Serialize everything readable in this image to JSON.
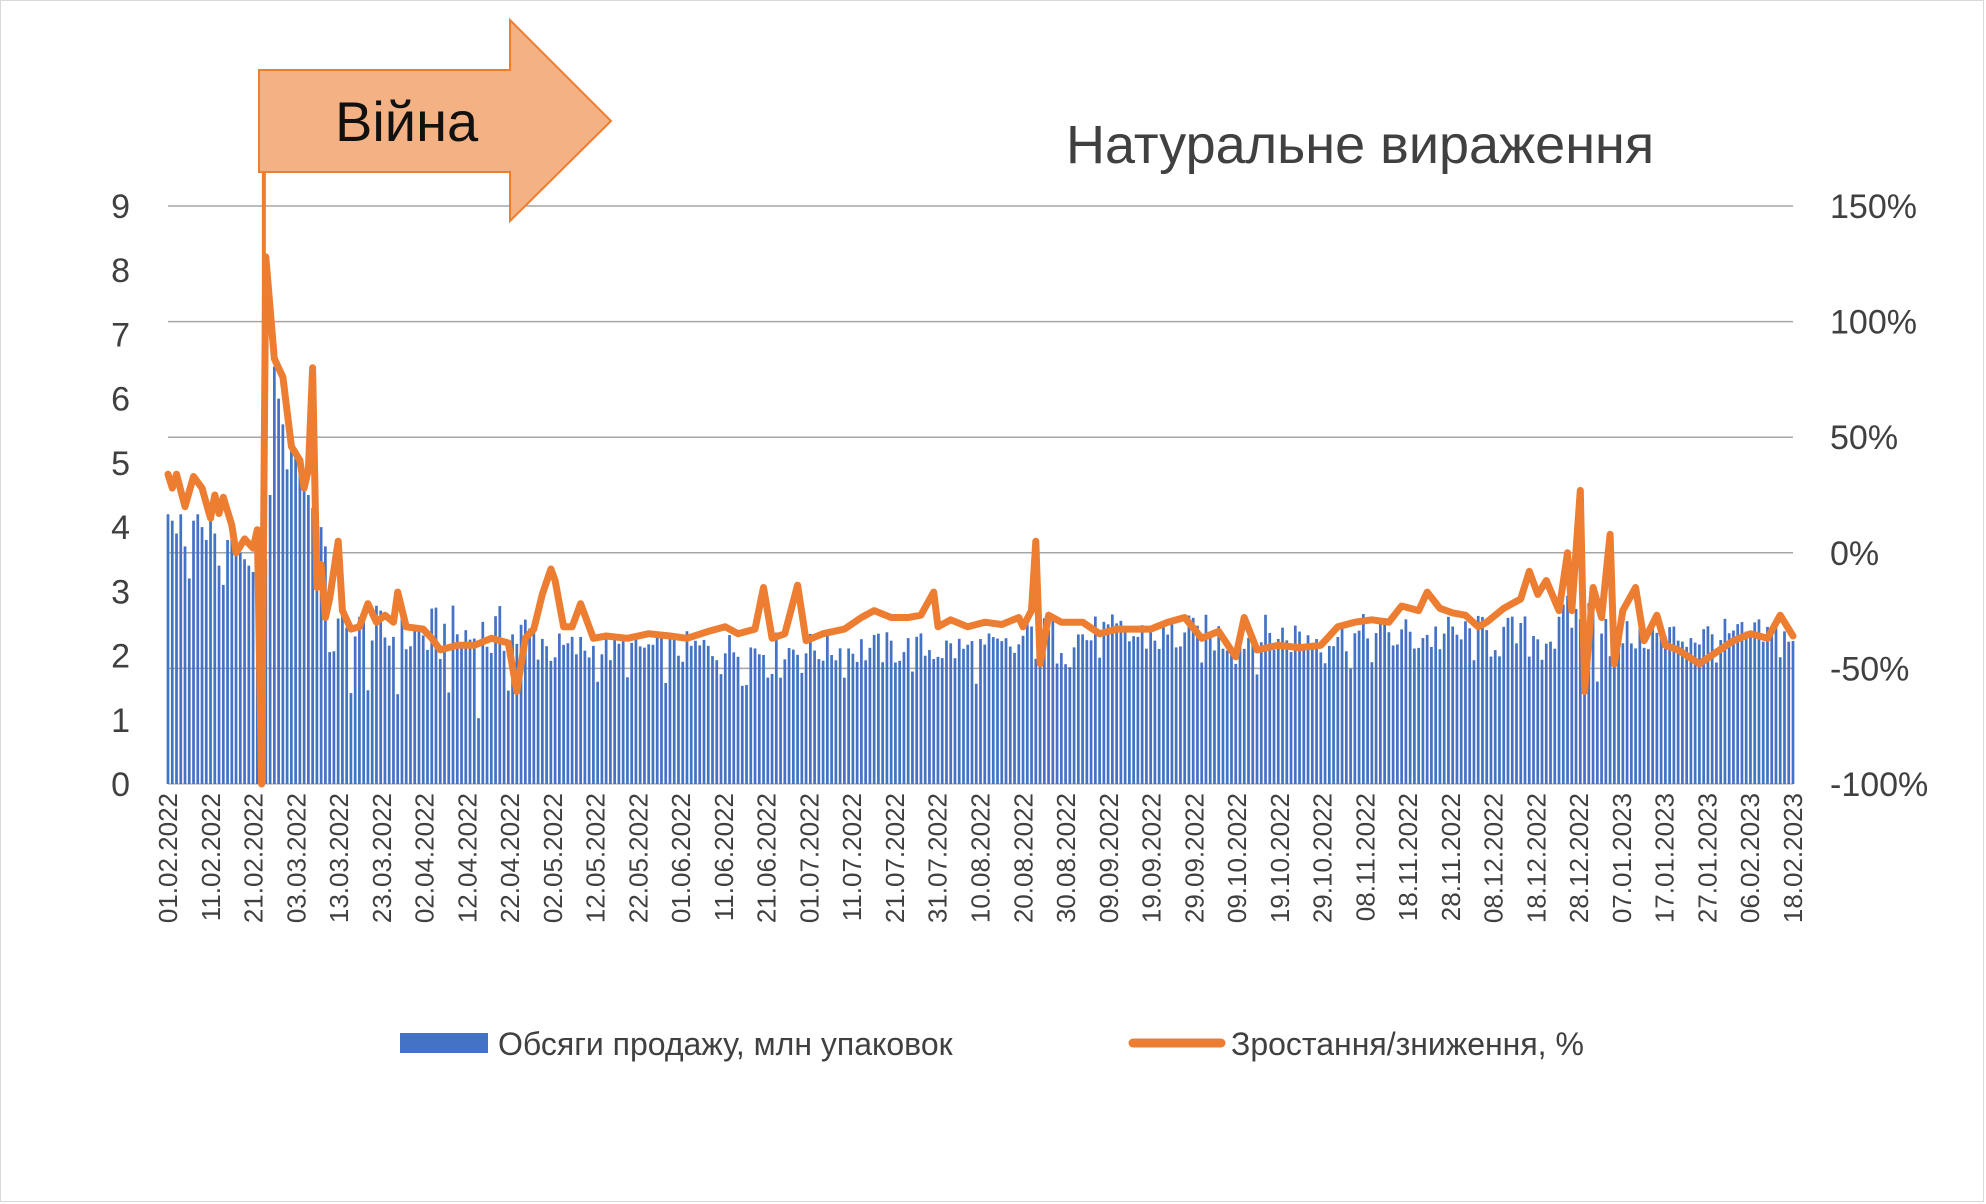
{
  "chart_data": {
    "type": "bar+line",
    "title": "Натуральне вираження",
    "annotation": "Війна",
    "colors": {
      "bars": "#4472C4",
      "line": "#ED7D31",
      "arrow_fill": "#F4B183",
      "arrow_stroke": "#ED7D31",
      "grid": "#a6a6a6",
      "text": "#404040"
    },
    "y_left": {
      "min": 0,
      "max": 9,
      "ticks": [
        "0",
        "1",
        "2",
        "3",
        "4",
        "5",
        "6",
        "7",
        "8",
        "9"
      ]
    },
    "y_right": {
      "min": -100,
      "max": 150,
      "ticks": [
        "-100%",
        "-50%",
        "0%",
        "50%",
        "100%",
        "150%"
      ]
    },
    "x_start": "2022-02-01",
    "x_end": "2023-02-18",
    "x_tick_labels": [
      "01.02.2022",
      "11.02.2022",
      "21.02.2022",
      "03.03.2022",
      "13.03.2022",
      "23.03.2022",
      "02.04.2022",
      "12.04.2022",
      "22.04.2022",
      "02.05.2022",
      "12.05.2022",
      "22.05.2022",
      "01.06.2022",
      "11.06.2022",
      "21.06.2022",
      "01.07.2022",
      "11.07.2022",
      "21.07.2022",
      "31.07.2022",
      "10.08.2022",
      "20.08.2022",
      "30.08.2022",
      "09.09.2022",
      "19.09.2022",
      "29.09.2022",
      "09.10.2022",
      "19.10.2022",
      "29.10.2022",
      "08.11.2022",
      "18.11.2022",
      "28.11.2022",
      "08.12.2022",
      "18.12.2022",
      "28.12.2022",
      "07.01.2023",
      "17.01.2023",
      "27.01.2023",
      "06.02.2023",
      "18.02.2023"
    ],
    "war_start": "2022-02-24",
    "series": [
      {
        "name": "Обсяги продажу, млн упаковок",
        "type": "bar",
        "axis": "left",
        "values_by_period": [
          {
            "from": "2022-02-01",
            "to": "2022-02-23",
            "values": [
              4.2,
              4.1,
              3.9,
              4.2,
              3.7,
              3.2,
              4.1,
              4.2,
              4.0,
              3.8,
              4.1,
              3.9,
              3.4,
              3.1,
              3.8,
              3.9,
              3.7,
              3.6,
              3.5,
              3.4,
              3.3,
              2.8,
              3.5
            ]
          },
          {
            "from": "2022-02-24",
            "to": "2022-03-10",
            "values": [
              3.5,
              4.5,
              6.5,
              6.0,
              5.6,
              4.9,
              5.3,
              5.1,
              4.9,
              4.7,
              4.5,
              4.3,
              4.5,
              4.0,
              3.7
            ]
          },
          {
            "from": "2022-03-11",
            "to": "2022-04-30",
            "level": 2.3,
            "range": [
              1.0,
              3.0
            ]
          },
          {
            "from": "2022-05-01",
            "to": "2022-08-20",
            "level": 2.1,
            "range": [
              1.5,
              2.5
            ]
          },
          {
            "from": "2022-08-21",
            "to": "2022-12-25",
            "level": 2.3,
            "range": [
              1.7,
              2.8
            ]
          },
          {
            "from": "2022-12-26",
            "to": "2023-01-05",
            "level": 2.6,
            "range": [
              0.9,
              3.1
            ]
          },
          {
            "from": "2023-01-06",
            "to": "2023-02-18",
            "level": 2.3,
            "range": [
              1.8,
              2.7
            ]
          }
        ]
      },
      {
        "name": "Зростання/зниження, %",
        "type": "line",
        "axis": "right",
        "points": [
          [
            "2022-02-01",
            34
          ],
          [
            "2022-02-02",
            28
          ],
          [
            "2022-02-03",
            34
          ],
          [
            "2022-02-05",
            20
          ],
          [
            "2022-02-07",
            33
          ],
          [
            "2022-02-09",
            28
          ],
          [
            "2022-02-11",
            15
          ],
          [
            "2022-02-12",
            25
          ],
          [
            "2022-02-13",
            17
          ],
          [
            "2022-02-14",
            24
          ],
          [
            "2022-02-16",
            12
          ],
          [
            "2022-02-17",
            0
          ],
          [
            "2022-02-19",
            6
          ],
          [
            "2022-02-21",
            2
          ],
          [
            "2022-02-22",
            10
          ],
          [
            "2022-02-23",
            -100
          ],
          [
            "2022-02-24",
            128
          ],
          [
            "2022-02-26",
            84
          ],
          [
            "2022-02-28",
            76
          ],
          [
            "2022-03-02",
            46
          ],
          [
            "2022-03-04",
            40
          ],
          [
            "2022-03-05",
            28
          ],
          [
            "2022-03-06",
            36
          ],
          [
            "2022-03-07",
            80
          ],
          [
            "2022-03-08",
            -15
          ],
          [
            "2022-03-09",
            -5
          ],
          [
            "2022-03-10",
            -28
          ],
          [
            "2022-03-11",
            -20
          ],
          [
            "2022-03-13",
            5
          ],
          [
            "2022-03-14",
            -25
          ],
          [
            "2022-03-16",
            -33
          ],
          [
            "2022-03-18",
            -32
          ],
          [
            "2022-03-20",
            -22
          ],
          [
            "2022-03-22",
            -30
          ],
          [
            "2022-03-24",
            -27
          ],
          [
            "2022-03-26",
            -30
          ],
          [
            "2022-03-27",
            -17
          ],
          [
            "2022-03-29",
            -32
          ],
          [
            "2022-04-02",
            -33
          ],
          [
            "2022-04-04",
            -37
          ],
          [
            "2022-04-06",
            -42
          ],
          [
            "2022-04-10",
            -40
          ],
          [
            "2022-04-14",
            -40
          ],
          [
            "2022-04-18",
            -37
          ],
          [
            "2022-04-22",
            -39
          ],
          [
            "2022-04-24",
            -60
          ],
          [
            "2022-04-26",
            -37
          ],
          [
            "2022-04-28",
            -33
          ],
          [
            "2022-04-30",
            -18
          ],
          [
            "2022-05-02",
            -7
          ],
          [
            "2022-05-03",
            -12
          ],
          [
            "2022-05-05",
            -32
          ],
          [
            "2022-05-07",
            -32
          ],
          [
            "2022-05-09",
            -22
          ],
          [
            "2022-05-12",
            -37
          ],
          [
            "2022-05-15",
            -36
          ],
          [
            "2022-05-20",
            -37
          ],
          [
            "2022-05-25",
            -35
          ],
          [
            "2022-05-30",
            -36
          ],
          [
            "2022-06-03",
            -37
          ],
          [
            "2022-06-08",
            -34
          ],
          [
            "2022-06-12",
            -32
          ],
          [
            "2022-06-15",
            -35
          ],
          [
            "2022-06-19",
            -33
          ],
          [
            "2022-06-21",
            -15
          ],
          [
            "2022-06-23",
            -37
          ],
          [
            "2022-06-26",
            -35
          ],
          [
            "2022-06-29",
            -14
          ],
          [
            "2022-07-01",
            -38
          ],
          [
            "2022-07-05",
            -35
          ],
          [
            "2022-07-10",
            -33
          ],
          [
            "2022-07-14",
            -28
          ],
          [
            "2022-07-17",
            -25
          ],
          [
            "2022-07-21",
            -28
          ],
          [
            "2022-07-25",
            -28
          ],
          [
            "2022-07-28",
            -27
          ],
          [
            "2022-07-31",
            -17
          ],
          [
            "2022-08-01",
            -32
          ],
          [
            "2022-08-04",
            -29
          ],
          [
            "2022-08-08",
            -32
          ],
          [
            "2022-08-12",
            -30
          ],
          [
            "2022-08-16",
            -31
          ],
          [
            "2022-08-20",
            -28
          ],
          [
            "2022-08-21",
            -32
          ],
          [
            "2022-08-23",
            -25
          ],
          [
            "2022-08-24",
            5
          ],
          [
            "2022-08-25",
            -48
          ],
          [
            "2022-08-27",
            -27
          ],
          [
            "2022-08-30",
            -30
          ],
          [
            "2022-09-04",
            -30
          ],
          [
            "2022-09-08",
            -35
          ],
          [
            "2022-09-12",
            -33
          ],
          [
            "2022-09-16",
            -33
          ],
          [
            "2022-09-20",
            -33
          ],
          [
            "2022-09-24",
            -30
          ],
          [
            "2022-09-28",
            -28
          ],
          [
            "2022-10-02",
            -37
          ],
          [
            "2022-10-06",
            -34
          ],
          [
            "2022-10-10",
            -45
          ],
          [
            "2022-10-12",
            -28
          ],
          [
            "2022-10-15",
            -42
          ],
          [
            "2022-10-20",
            -40
          ],
          [
            "2022-10-25",
            -41
          ],
          [
            "2022-10-30",
            -40
          ],
          [
            "2022-11-03",
            -32
          ],
          [
            "2022-11-07",
            -30
          ],
          [
            "2022-11-11",
            -29
          ],
          [
            "2022-11-15",
            -30
          ],
          [
            "2022-11-18",
            -23
          ],
          [
            "2022-11-22",
            -25
          ],
          [
            "2022-11-24",
            -17
          ],
          [
            "2022-11-27",
            -24
          ],
          [
            "2022-11-30",
            -26
          ],
          [
            "2022-12-03",
            -27
          ],
          [
            "2022-12-06",
            -32
          ],
          [
            "2022-12-08",
            -30
          ],
          [
            "2022-12-12",
            -24
          ],
          [
            "2022-12-16",
            -20
          ],
          [
            "2022-12-18",
            -8
          ],
          [
            "2022-12-20",
            -18
          ],
          [
            "2022-12-22",
            -12
          ],
          [
            "2022-12-25",
            -25
          ],
          [
            "2022-12-27",
            0
          ],
          [
            "2022-12-28",
            -25
          ],
          [
            "2022-12-30",
            27
          ],
          [
            "2022-12-31",
            -60
          ],
          [
            "2023-01-02",
            -15
          ],
          [
            "2023-01-04",
            -28
          ],
          [
            "2023-01-06",
            8
          ],
          [
            "2023-01-07",
            -48
          ],
          [
            "2023-01-09",
            -25
          ],
          [
            "2023-01-12",
            -15
          ],
          [
            "2023-01-14",
            -38
          ],
          [
            "2023-01-17",
            -27
          ],
          [
            "2023-01-19",
            -40
          ],
          [
            "2023-01-22",
            -42
          ],
          [
            "2023-01-27",
            -48
          ],
          [
            "2023-01-31",
            -43
          ],
          [
            "2023-02-04",
            -38
          ],
          [
            "2023-02-08",
            -35
          ],
          [
            "2023-02-12",
            -37
          ],
          [
            "2023-02-15",
            -27
          ],
          [
            "2023-02-18",
            -36
          ]
        ]
      }
    ]
  },
  "legend": [
    {
      "label": "Обсяги продажу, млн упаковок"
    },
    {
      "label": "Зростання/зниження, %"
    }
  ]
}
